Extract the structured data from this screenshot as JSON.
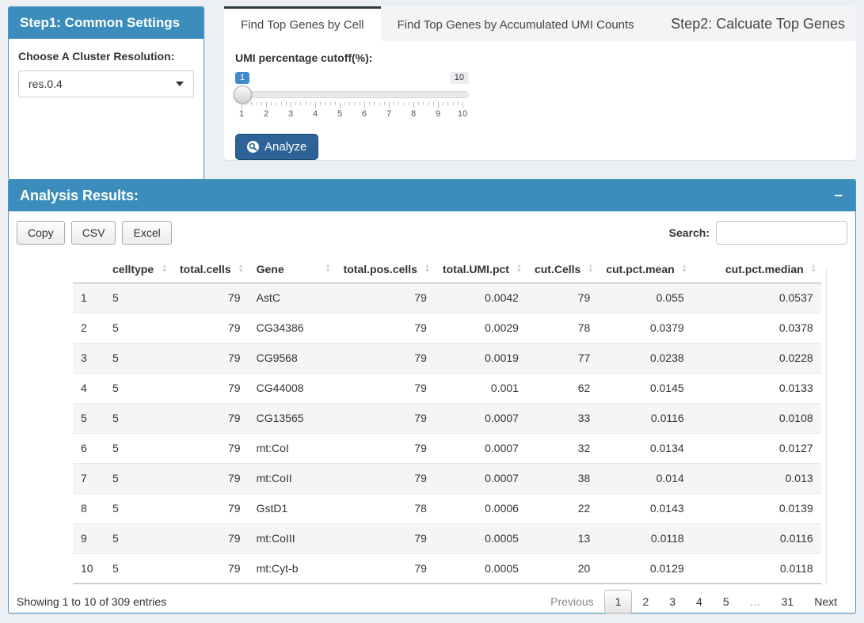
{
  "step1": {
    "title": "Step1: Common Settings",
    "cluster_label": "Choose A Cluster Resolution:",
    "cluster_value": "res.0.4"
  },
  "step2": {
    "title": "Step2: Calcuate Top Genes",
    "tabs": [
      {
        "label": "Find Top Genes by Cell",
        "active": true
      },
      {
        "label": "Find Top Genes by Accumulated UMI Counts",
        "active": false
      }
    ],
    "slider": {
      "label": "UMI percentage cutoff(%):",
      "current_value": "1",
      "max_value": "10",
      "tick_labels": [
        "1",
        "2",
        "3",
        "4",
        "5",
        "6",
        "7",
        "8",
        "9",
        "10"
      ]
    },
    "analyze_label": "Analyze"
  },
  "results": {
    "title": "Analysis Results:",
    "collapse_icon": "−",
    "export_buttons": [
      "Copy",
      "CSV",
      "Excel"
    ],
    "search_label": "Search:",
    "search_value": "",
    "table": {
      "columns": [
        "",
        "celltype",
        "total.cells",
        "Gene",
        "total.pos.cells",
        "total.UMI.pct",
        "cut.Cells",
        "cut.pct.mean",
        "cut.pct.median"
      ],
      "rows": [
        [
          "1",
          "5",
          "79",
          "AstC",
          "79",
          "0.0042",
          "79",
          "0.055",
          "0.0537"
        ],
        [
          "2",
          "5",
          "79",
          "CG34386",
          "79",
          "0.0029",
          "78",
          "0.0379",
          "0.0378"
        ],
        [
          "3",
          "5",
          "79",
          "CG9568",
          "79",
          "0.0019",
          "77",
          "0.0238",
          "0.0228"
        ],
        [
          "4",
          "5",
          "79",
          "CG44008",
          "79",
          "0.001",
          "62",
          "0.0145",
          "0.0133"
        ],
        [
          "5",
          "5",
          "79",
          "CG13565",
          "79",
          "0.0007",
          "33",
          "0.0116",
          "0.0108"
        ],
        [
          "6",
          "5",
          "79",
          "mt:CoI",
          "79",
          "0.0007",
          "32",
          "0.0134",
          "0.0127"
        ],
        [
          "7",
          "5",
          "79",
          "mt:CoII",
          "79",
          "0.0007",
          "38",
          "0.014",
          "0.013"
        ],
        [
          "8",
          "5",
          "79",
          "GstD1",
          "78",
          "0.0006",
          "22",
          "0.0143",
          "0.0139"
        ],
        [
          "9",
          "5",
          "79",
          "mt:CoIII",
          "79",
          "0.0005",
          "13",
          "0.0118",
          "0.0116"
        ],
        [
          "10",
          "5",
          "79",
          "mt:Cyt-b",
          "79",
          "0.0005",
          "20",
          "0.0129",
          "0.0118"
        ]
      ]
    },
    "info": "Showing 1 to 10 of 309 entries",
    "pagination": {
      "previous_label": "Previous",
      "pages": [
        "1",
        "2",
        "3",
        "4",
        "5",
        "…",
        "31"
      ],
      "current_page": "1",
      "next_label": "Next"
    }
  },
  "colors": {
    "primary": "#3c8dbc",
    "slider_badge": "#428bca",
    "analyze_button": "#2d6397"
  }
}
